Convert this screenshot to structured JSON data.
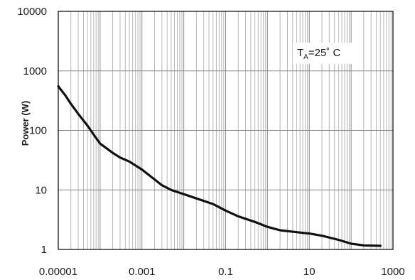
{
  "chart_data": {
    "type": "line",
    "title": "",
    "xlabel": "",
    "ylabel": "Power (W)",
    "x_scale": "log",
    "y_scale": "log",
    "xlim": [
      1e-05,
      1000
    ],
    "ylim": [
      1,
      10000
    ],
    "x_tick_labels": [
      "0.00001",
      "0.001",
      "0.1",
      "10",
      "1000"
    ],
    "y_tick_labels": [
      "1",
      "10",
      "100",
      "1000",
      "10000"
    ],
    "grid": true,
    "annotation": {
      "main": "T",
      "sub": "A",
      "rest": "=25˚ C"
    },
    "series": [
      {
        "x": [
          1e-05,
          1.5e-05,
          2e-05,
          3e-05,
          5e-05,
          7e-05,
          0.0001,
          0.0002,
          0.0003,
          0.0005,
          0.001,
          0.002,
          0.003,
          0.005,
          0.01,
          0.02,
          0.05,
          0.1,
          0.2,
          0.5,
          1,
          2,
          5,
          10,
          20,
          50,
          100,
          200,
          500
        ],
        "y": [
          550,
          380,
          280,
          190,
          120,
          85,
          60,
          42,
          35,
          30,
          22,
          15,
          12,
          10,
          8.5,
          7.2,
          5.8,
          4.5,
          3.6,
          2.9,
          2.4,
          2.1,
          1.95,
          1.85,
          1.7,
          1.45,
          1.25,
          1.17,
          1.15
        ]
      }
    ]
  }
}
